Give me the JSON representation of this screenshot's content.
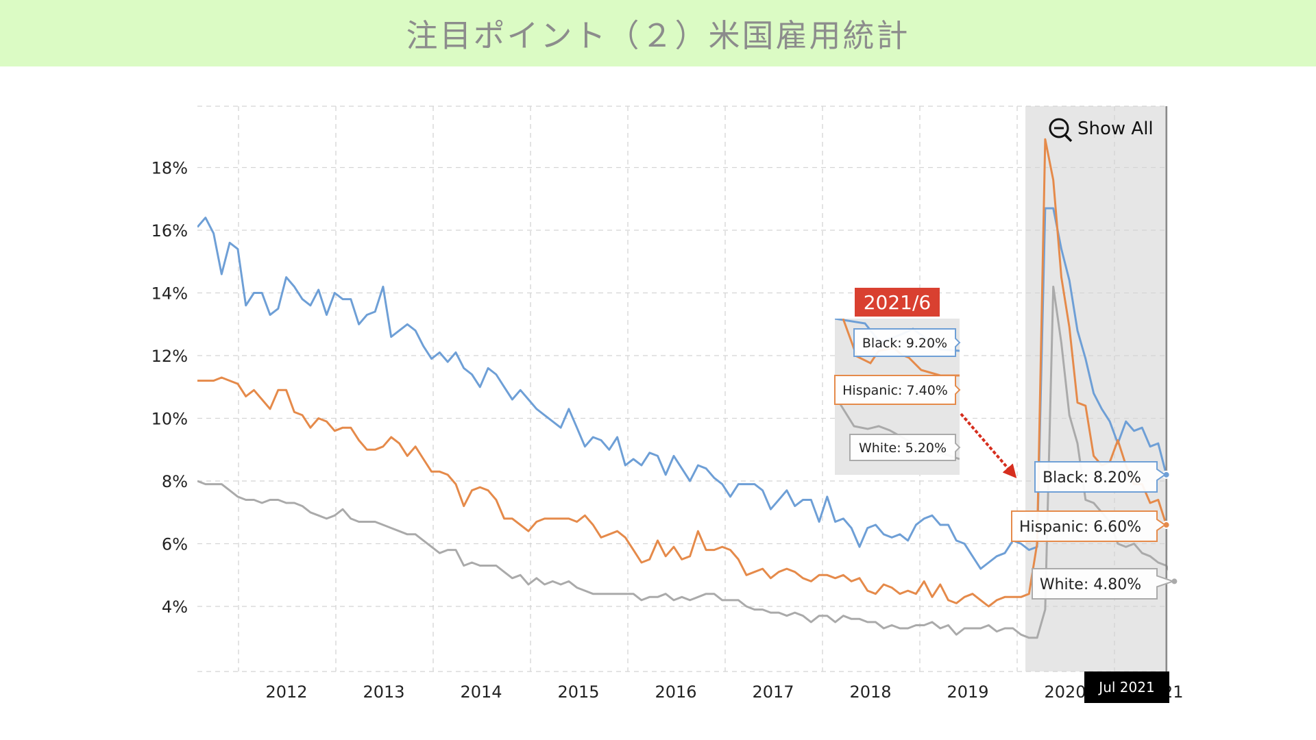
{
  "header": {
    "title": "注目ポイント（２）米国雇用統計"
  },
  "controls": {
    "show_all_label": "Show All"
  },
  "annotation": {
    "date_badge": "2021/6"
  },
  "crosshair": {
    "date_label": "Jul 2021"
  },
  "colors": {
    "header_bg": "#dbfbc4",
    "black_series": "#6e9fd6",
    "hispanic_series": "#e58a4a",
    "white_series": "#aaaaaa",
    "highlight_band": "#e6e6e6",
    "badge": "#d94030",
    "arrow": "#d62e1e"
  },
  "chart_data": {
    "type": "line",
    "title": "",
    "xlabel": "",
    "ylabel": "",
    "x_ticks": [
      "2012",
      "2013",
      "2014",
      "2015",
      "2016",
      "2017",
      "2018",
      "2019",
      "2020",
      "2021"
    ],
    "y_ticks": [
      "4%",
      "6%",
      "8%",
      "10%",
      "12%",
      "14%",
      "16%",
      "18%"
    ],
    "ylim": [
      2,
      19.5
    ],
    "xlim": [
      "2011-07",
      "2021-07"
    ],
    "grid": true,
    "highlight_range": [
      "2020-04",
      "2021-07"
    ],
    "series": [
      {
        "name": "Black",
        "tooltip": "Black: 8.20%",
        "inset_tooltip": "Black: 9.20%",
        "values": [
          16.1,
          16.4,
          15.9,
          14.6,
          15.6,
          15.4,
          13.6,
          14.0,
          14.0,
          13.3,
          13.5,
          14.5,
          14.2,
          13.8,
          13.6,
          14.1,
          13.3,
          14.0,
          13.8,
          13.8,
          13.0,
          13.3,
          13.4,
          14.2,
          12.6,
          12.8,
          13.0,
          12.8,
          12.3,
          11.9,
          12.1,
          11.8,
          12.1,
          11.6,
          11.4,
          11.0,
          11.6,
          11.4,
          11.0,
          10.6,
          10.9,
          10.6,
          10.3,
          10.1,
          9.9,
          9.7,
          10.3,
          9.7,
          9.1,
          9.4,
          9.3,
          9.0,
          9.4,
          8.5,
          8.7,
          8.5,
          8.9,
          8.8,
          8.2,
          8.8,
          8.4,
          8.0,
          8.5,
          8.4,
          8.1,
          7.9,
          7.5,
          7.9,
          7.9,
          7.9,
          7.7,
          7.1,
          7.4,
          7.7,
          7.2,
          7.4,
          7.4,
          6.7,
          7.5,
          6.7,
          6.8,
          6.5,
          5.9,
          6.5,
          6.6,
          6.3,
          6.2,
          6.3,
          6.1,
          6.6,
          6.8,
          6.9,
          6.6,
          6.6,
          6.1,
          6.0,
          5.6,
          5.2,
          5.4,
          5.6,
          5.7,
          6.1,
          6.0,
          5.8,
          5.9,
          16.7,
          16.7,
          15.4,
          14.4,
          12.8,
          11.9,
          10.8,
          10.3,
          9.9,
          9.2,
          9.9,
          9.6,
          9.7,
          9.1,
          9.2,
          8.2
        ]
      },
      {
        "name": "Hispanic",
        "tooltip": "Hispanic: 6.60%",
        "inset_tooltip": "Hispanic: 7.40%",
        "values": [
          11.2,
          11.2,
          11.2,
          11.3,
          11.2,
          11.1,
          10.7,
          10.9,
          10.6,
          10.3,
          10.9,
          10.9,
          10.2,
          10.1,
          9.7,
          10.0,
          9.9,
          9.6,
          9.7,
          9.7,
          9.3,
          9.0,
          9.0,
          9.1,
          9.4,
          9.2,
          8.8,
          9.1,
          8.7,
          8.3,
          8.3,
          8.2,
          7.9,
          7.2,
          7.7,
          7.8,
          7.7,
          7.4,
          6.8,
          6.8,
          6.6,
          6.4,
          6.7,
          6.8,
          6.8,
          6.8,
          6.8,
          6.7,
          6.9,
          6.6,
          6.2,
          6.3,
          6.4,
          6.2,
          5.8,
          5.4,
          5.5,
          6.1,
          5.6,
          5.9,
          5.5,
          5.6,
          6.4,
          5.8,
          5.8,
          5.9,
          5.8,
          5.5,
          5.0,
          5.1,
          5.2,
          4.9,
          5.1,
          5.2,
          5.1,
          4.9,
          4.8,
          5.0,
          5.0,
          4.9,
          5.0,
          4.8,
          4.9,
          4.5,
          4.4,
          4.7,
          4.6,
          4.4,
          4.5,
          4.4,
          4.8,
          4.3,
          4.7,
          4.2,
          4.1,
          4.3,
          4.4,
          4.2,
          4.0,
          4.2,
          4.3,
          4.3,
          4.3,
          4.4,
          6.0,
          18.9,
          17.6,
          14.5,
          12.9,
          10.5,
          10.4,
          8.8,
          8.5,
          8.6,
          9.3,
          8.5,
          7.9,
          7.9,
          7.3,
          7.4,
          6.6
        ]
      },
      {
        "name": "White",
        "tooltip": "White: 4.80%",
        "inset_tooltip": "White: 5.20%",
        "values": [
          8.0,
          7.9,
          7.9,
          7.9,
          7.7,
          7.5,
          7.4,
          7.4,
          7.3,
          7.4,
          7.4,
          7.3,
          7.3,
          7.2,
          7.0,
          6.9,
          6.8,
          6.9,
          7.1,
          6.8,
          6.7,
          6.7,
          6.7,
          6.6,
          6.5,
          6.4,
          6.3,
          6.3,
          6.1,
          5.9,
          5.7,
          5.8,
          5.8,
          5.3,
          5.4,
          5.3,
          5.3,
          5.3,
          5.1,
          4.9,
          5.0,
          4.7,
          4.9,
          4.7,
          4.8,
          4.7,
          4.8,
          4.6,
          4.5,
          4.4,
          4.4,
          4.4,
          4.4,
          4.4,
          4.4,
          4.2,
          4.3,
          4.3,
          4.4,
          4.2,
          4.3,
          4.2,
          4.3,
          4.4,
          4.4,
          4.2,
          4.2,
          4.2,
          4.0,
          3.9,
          3.9,
          3.8,
          3.8,
          3.7,
          3.8,
          3.7,
          3.5,
          3.7,
          3.7,
          3.5,
          3.7,
          3.6,
          3.6,
          3.5,
          3.5,
          3.3,
          3.4,
          3.3,
          3.3,
          3.4,
          3.4,
          3.5,
          3.3,
          3.4,
          3.1,
          3.3,
          3.3,
          3.3,
          3.4,
          3.2,
          3.3,
          3.3,
          3.1,
          3.0,
          3.0,
          3.9,
          14.2,
          12.4,
          10.1,
          9.2,
          7.4,
          7.3,
          7.0,
          6.7,
          6.0,
          5.9,
          6.0,
          5.7,
          5.6,
          5.4,
          5.3,
          4.8
        ]
      }
    ]
  }
}
